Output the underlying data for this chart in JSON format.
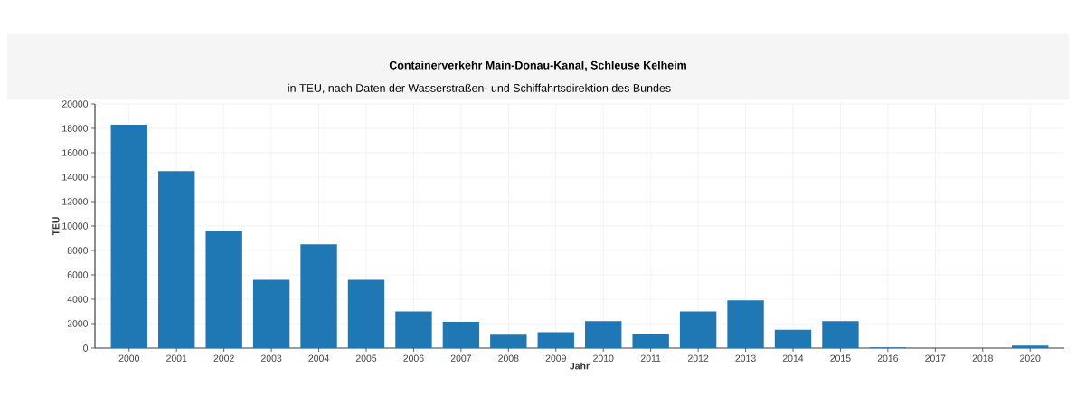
{
  "chart_data": {
    "type": "bar",
    "title": "Containerverkehr Main-Donau-Kanal, Schleuse Kelheim",
    "subtitle": "in TEU, nach Daten der Wasserstraßen- und Schiffahrtsdirektion des Bundes",
    "xlabel": "Jahr",
    "ylabel": "TEU",
    "categories": [
      "2000",
      "2001",
      "2002",
      "2003",
      "2004",
      "2005",
      "2006",
      "2007",
      "2008",
      "2009",
      "2010",
      "2011",
      "2012",
      "2013",
      "2014",
      "2015",
      "2016",
      "2017",
      "2018",
      "2020"
    ],
    "values": [
      18300,
      14500,
      9600,
      5600,
      8500,
      5600,
      3000,
      2150,
      1100,
      1300,
      2200,
      1150,
      3000,
      3900,
      1500,
      2200,
      50,
      0,
      0,
      200
    ],
    "color": "#1f77b4",
    "ylim": [
      0,
      20000
    ],
    "yticks": [
      0,
      2000,
      4000,
      6000,
      8000,
      10000,
      12000,
      14000,
      16000,
      18000,
      20000
    ],
    "grid": true
  }
}
